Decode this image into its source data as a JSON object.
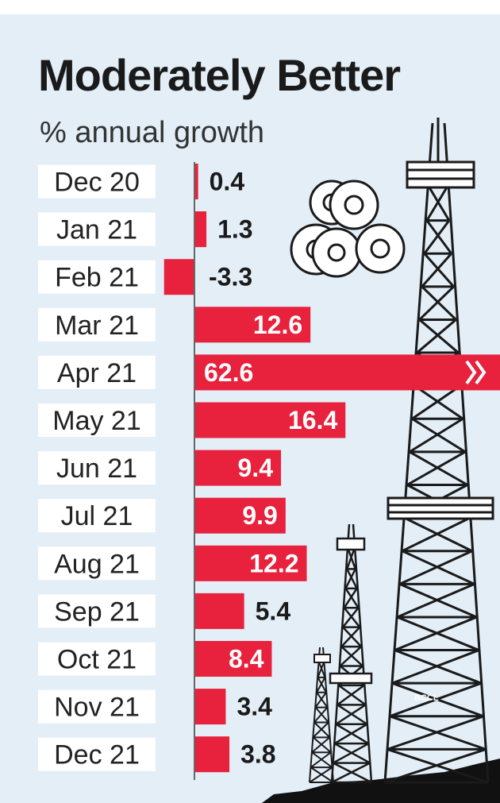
{
  "chart_data": {
    "type": "bar",
    "orientation": "horizontal",
    "title": "Moderately Better",
    "subtitle": "% annual growth",
    "categories": [
      "Dec 20",
      "Jan 21",
      "Feb 21",
      "Mar 21",
      "Apr 21",
      "May 21",
      "Jun 21",
      "Jul 21",
      "Aug 21",
      "Sep 21",
      "Oct 21",
      "Nov 21",
      "Dec 21"
    ],
    "values": [
      0.4,
      1.3,
      -3.3,
      12.6,
      62.6,
      16.4,
      9.4,
      9.9,
      12.2,
      5.4,
      8.4,
      3.4,
      3.8
    ],
    "value_labels": [
      "0.4",
      "1.3",
      "-3.3",
      "12.6",
      "62.6",
      "16.4",
      "9.4",
      "9.9",
      "12.2",
      "5.4",
      "8.4",
      "3.4",
      "3.8"
    ],
    "truncated_bar": "Apr 21",
    "bar_color": "#e8213d",
    "legend": "none",
    "grid": false
  },
  "credit": "BCCL",
  "colors": {
    "background": "#e3eef7",
    "label_box": "#ffffff",
    "axis": "#666666"
  }
}
